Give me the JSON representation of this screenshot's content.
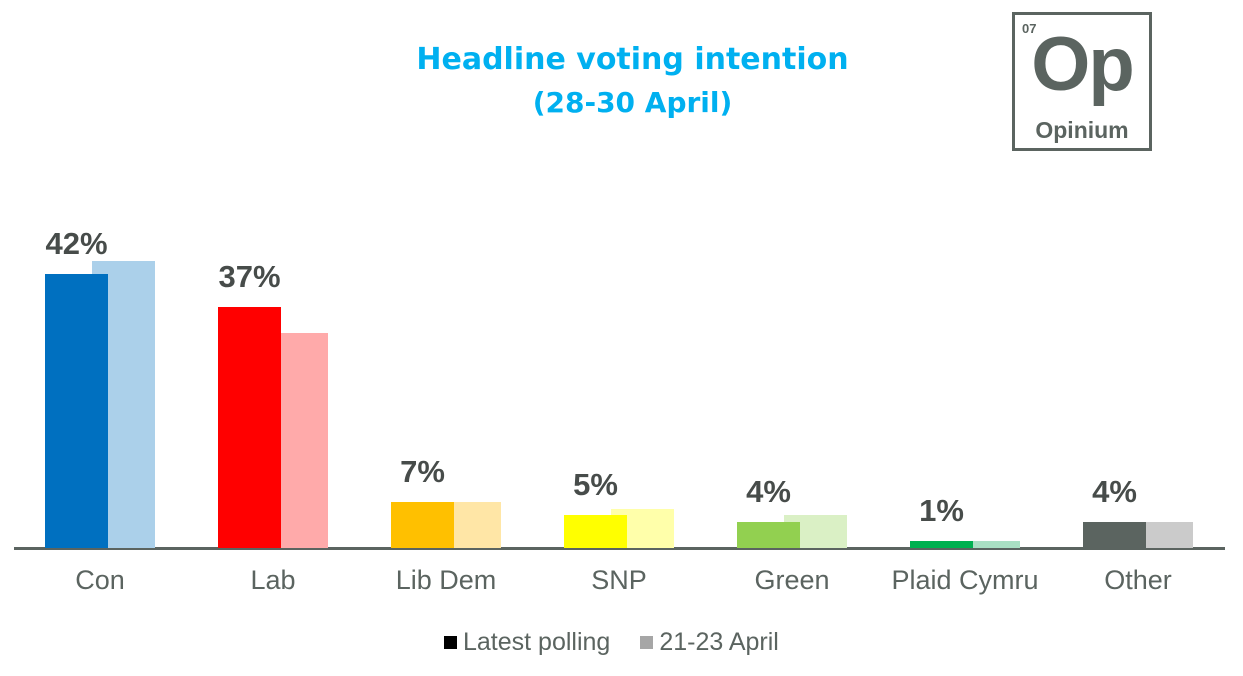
{
  "header": {
    "title_line1": "Headline voting intention",
    "title_line2": "(28-30 April)"
  },
  "logo": {
    "number": "07",
    "symbol": "Op",
    "name": "Opinium"
  },
  "legend": [
    {
      "label": "Latest polling",
      "color": "#000000"
    },
    {
      "label": "21-23 April",
      "color": "#a6a6a6"
    }
  ],
  "chart_data": {
    "type": "bar",
    "title": "Headline voting intention (28-30 April)",
    "xlabel": "",
    "ylabel": "",
    "ylim": [
      0,
      45
    ],
    "grid": false,
    "legend_position": "bottom",
    "categories": [
      "Con",
      "Lab",
      "Lib Dem",
      "SNP",
      "Green",
      "Plaid Cymru",
      "Other"
    ],
    "series": [
      {
        "name": "Latest polling",
        "values": [
          42,
          37,
          7,
          5,
          4,
          1,
          4
        ],
        "colors": [
          "#0070c0",
          "#ff0000",
          "#ffc000",
          "#ffff00",
          "#92d050",
          "#00b050",
          "#5b6460"
        ]
      },
      {
        "name": "21-23 April",
        "values": [
          44,
          33,
          7,
          6,
          5,
          1,
          4
        ],
        "colors": [
          "#abd0ea",
          "#ffaaaa",
          "#ffe6a6",
          "#ffffaa",
          "#daf0c5",
          "#a9e0c3",
          "#cbcbcb"
        ]
      }
    ],
    "data_labels": [
      "42%",
      "37%",
      "7%",
      "5%",
      "4%",
      "1%",
      "4%"
    ]
  }
}
